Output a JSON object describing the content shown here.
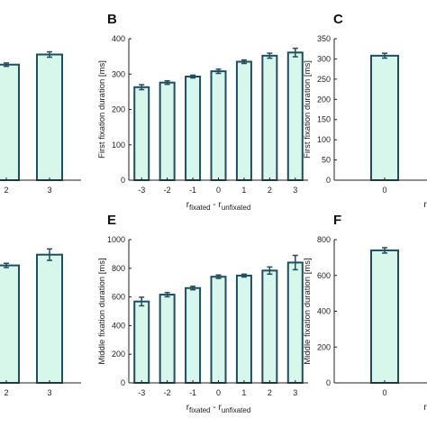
{
  "colors": {
    "bar_fill": "#d6f7ea",
    "bar_edge": "#1f4e63",
    "axis": "#222222"
  },
  "chart_data": [
    {
      "panel": "",
      "type": "bar",
      "ylabel": "",
      "xlabel": "",
      "categories": [
        "2",
        "3"
      ],
      "values": [
        342,
        372
      ],
      "errors": [
        5,
        8
      ],
      "ylim": [
        0,
        400
      ],
      "yticks": []
    },
    {
      "panel": "B",
      "type": "bar",
      "ylabel": "First fixation duration [ms]",
      "xlabel": {
        "r1": "r",
        "sub1": "fixated",
        "mid": " - r",
        "sub2": "unfixated"
      },
      "categories": [
        "-3",
        "-2",
        "-1",
        "0",
        "1",
        "2",
        "3"
      ],
      "values": [
        263,
        276,
        293,
        308,
        335,
        352,
        361
      ],
      "errors": [
        7,
        5,
        4,
        6,
        5,
        7,
        12
      ],
      "ylim": [
        0,
        400
      ],
      "yticks": [
        "0",
        "100",
        "200",
        "300",
        "400"
      ]
    },
    {
      "panel": "C",
      "type": "bar",
      "ylabel": "First fixation duration [ms]",
      "xlabel": "r",
      "categories": [
        "0"
      ],
      "values": [
        308
      ],
      "errors": [
        6
      ],
      "ylim": [
        0,
        350
      ],
      "yticks": [
        "0",
        "50",
        "100",
        "150",
        "200",
        "250",
        "300",
        "350"
      ]
    },
    {
      "panel": "",
      "type": "bar",
      "ylabel": "",
      "xlabel": "",
      "categories": [
        "2",
        "3"
      ],
      "values": [
        820,
        895
      ],
      "errors": [
        15,
        40
      ],
      "ylim": [
        0,
        1000
      ],
      "yticks": []
    },
    {
      "panel": "E",
      "type": "bar",
      "ylabel": "Middle fixation duration [ms]",
      "xlabel": {
        "r1": "r",
        "sub1": "fixated",
        "mid": " - r",
        "sub2": "unfixated"
      },
      "categories": [
        "-3",
        "-2",
        "-1",
        "0",
        "1",
        "2",
        "3"
      ],
      "values": [
        568,
        616,
        662,
        741,
        749,
        784,
        840
      ],
      "errors": [
        30,
        15,
        12,
        12,
        10,
        25,
        50
      ],
      "ylim": [
        0,
        1000
      ],
      "yticks": [
        "0",
        "200",
        "400",
        "600",
        "800",
        "1000"
      ]
    },
    {
      "panel": "F",
      "type": "bar",
      "ylabel": "Middle fixation duration [ms]",
      "xlabel": "r",
      "categories": [
        "0"
      ],
      "values": [
        740
      ],
      "errors": [
        15
      ],
      "ylim": [
        0,
        800
      ],
      "yticks": [
        "0",
        "200",
        "400",
        "600",
        "800"
      ]
    }
  ]
}
